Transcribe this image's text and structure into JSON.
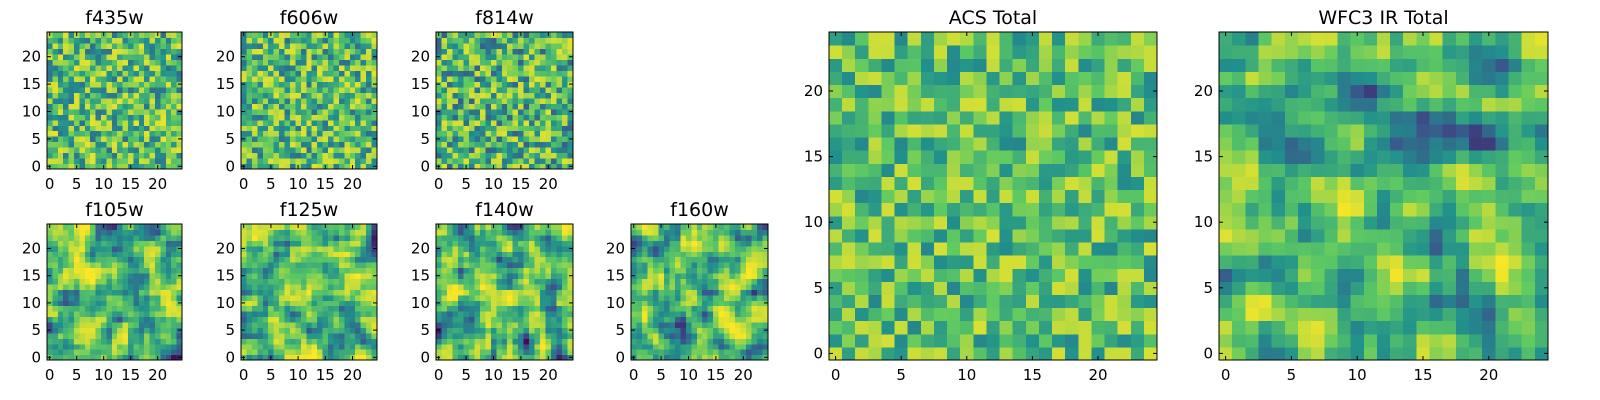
{
  "figure": {
    "colormap": "viridis",
    "colormap_stops": [
      "#440154",
      "#3b528b",
      "#21918c",
      "#5ec962",
      "#fde725"
    ]
  },
  "chart_data": [
    {
      "type": "heatmap",
      "title": "f435w",
      "shape": [
        25,
        25
      ],
      "xticks": [
        0,
        5,
        10,
        15,
        20
      ],
      "yticks": [
        0,
        5,
        10,
        15,
        20
      ],
      "xlim": [
        0,
        25
      ],
      "ylim": [
        0,
        25
      ],
      "value_range": [
        0,
        1
      ],
      "mean": 0.7,
      "spread": 0.2,
      "smoothness": 0,
      "seed": 11
    },
    {
      "type": "heatmap",
      "title": "f606w",
      "shape": [
        25,
        25
      ],
      "xticks": [
        0,
        5,
        10,
        15,
        20
      ],
      "yticks": [
        0,
        5,
        10,
        15,
        20
      ],
      "xlim": [
        0,
        25
      ],
      "ylim": [
        0,
        25
      ],
      "value_range": [
        0,
        1
      ],
      "mean": 0.7,
      "spread": 0.2,
      "smoothness": 0,
      "seed": 23
    },
    {
      "type": "heatmap",
      "title": "f814w",
      "shape": [
        25,
        25
      ],
      "xticks": [
        0,
        5,
        10,
        15,
        20
      ],
      "yticks": [
        0,
        5,
        10,
        15,
        20
      ],
      "xlim": [
        0,
        25
      ],
      "ylim": [
        0,
        25
      ],
      "value_range": [
        0,
        1
      ],
      "mean": 0.68,
      "spread": 0.21,
      "smoothness": 0,
      "seed": 37
    },
    {
      "type": "heatmap",
      "title": "f105w",
      "shape": [
        25,
        25
      ],
      "xticks": [
        0,
        5,
        10,
        15,
        20
      ],
      "yticks": [
        0,
        5,
        10,
        15,
        20
      ],
      "xlim": [
        0,
        25
      ],
      "ylim": [
        0,
        25
      ],
      "value_range": [
        0,
        1
      ],
      "mean": 0.68,
      "spread": 0.2,
      "smoothness": 1,
      "seed": 41
    },
    {
      "type": "heatmap",
      "title": "f125w",
      "shape": [
        25,
        25
      ],
      "xticks": [
        0,
        5,
        10,
        15,
        20
      ],
      "yticks": [
        0,
        5,
        10,
        15,
        20
      ],
      "xlim": [
        0,
        25
      ],
      "ylim": [
        0,
        25
      ],
      "value_range": [
        0,
        1
      ],
      "mean": 0.7,
      "spread": 0.19,
      "smoothness": 1,
      "seed": 53
    },
    {
      "type": "heatmap",
      "title": "f140w",
      "shape": [
        25,
        25
      ],
      "xticks": [
        0,
        5,
        10,
        15,
        20
      ],
      "yticks": [
        0,
        5,
        10,
        15,
        20
      ],
      "xlim": [
        0,
        25
      ],
      "ylim": [
        0,
        25
      ],
      "value_range": [
        0,
        1
      ],
      "mean": 0.68,
      "spread": 0.2,
      "smoothness": 1,
      "seed": 67
    },
    {
      "type": "heatmap",
      "title": "f160w",
      "shape": [
        25,
        25
      ],
      "xticks": [
        0,
        5,
        10,
        15,
        20
      ],
      "yticks": [
        0,
        5,
        10,
        15,
        20
      ],
      "xlim": [
        0,
        25
      ],
      "ylim": [
        0,
        25
      ],
      "value_range": [
        0,
        1
      ],
      "mean": 0.68,
      "spread": 0.2,
      "smoothness": 1,
      "seed": 79
    },
    {
      "type": "heatmap",
      "title": "ACS Total",
      "shape": [
        25,
        25
      ],
      "xticks": [
        0,
        5,
        10,
        15,
        20
      ],
      "yticks": [
        0,
        5,
        10,
        15,
        20
      ],
      "xlim": [
        0,
        25
      ],
      "ylim": [
        0,
        25
      ],
      "value_range": [
        0,
        1
      ],
      "mean": 0.72,
      "spread": 0.16,
      "smoothness": 0,
      "seed": 89
    },
    {
      "type": "heatmap",
      "title": "WFC3 IR Total",
      "shape": [
        25,
        25
      ],
      "xticks": [
        0,
        5,
        10,
        15,
        20
      ],
      "yticks": [
        0,
        5,
        10,
        15,
        20
      ],
      "xlim": [
        0,
        25
      ],
      "ylim": [
        0,
        25
      ],
      "value_range": [
        0,
        1
      ],
      "mean": 0.66,
      "spread": 0.17,
      "smoothness": 1,
      "seed": 97
    }
  ]
}
